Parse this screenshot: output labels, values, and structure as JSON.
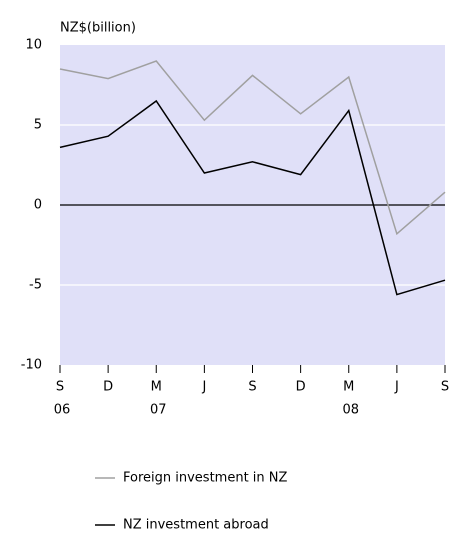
{
  "chart_data": {
    "type": "line",
    "y_axis_label": "NZ$(billion)",
    "categories": [
      "S",
      "D",
      "M",
      "J",
      "S",
      "D",
      "M",
      "J",
      "S"
    ],
    "year_labels": [
      "06",
      null,
      "07",
      null,
      null,
      null,
      "08",
      null,
      null
    ],
    "series": [
      {
        "name": "Foreign investment in NZ",
        "color": "#a0a0a0",
        "values": [
          8.5,
          7.9,
          9.0,
          5.3,
          8.1,
          5.7,
          8.0,
          -1.8,
          0.8
        ]
      },
      {
        "name": "NZ investment abroad",
        "color": "#000000",
        "values": [
          3.6,
          4.3,
          6.5,
          2.0,
          2.7,
          1.9,
          5.9,
          -5.6,
          -4.7
        ]
      }
    ],
    "ylim": [
      -10,
      10
    ],
    "yticks": [
      -10,
      -5,
      0,
      5,
      10
    ],
    "grid": true,
    "background": "#e0e0f8"
  }
}
